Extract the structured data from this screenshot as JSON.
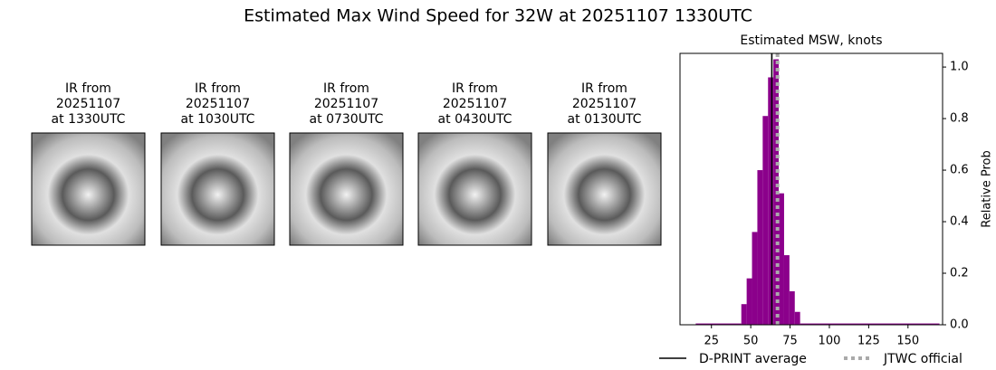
{
  "title": "Estimated Max Wind Speed for 32W at 20251107 1330UTC",
  "panels": [
    {
      "title": [
        "IR from",
        "20251107",
        "at 1330UTC"
      ]
    },
    {
      "title": [
        "IR from",
        "20251107",
        "at 1030UTC"
      ]
    },
    {
      "title": [
        "IR from",
        "20251107",
        "at 0730UTC"
      ]
    },
    {
      "title": [
        "IR from",
        "20251107",
        "at 0430UTC"
      ]
    },
    {
      "title": [
        "IR from",
        "20251107",
        "at 0130UTC"
      ]
    }
  ],
  "chart_data": {
    "type": "histogram",
    "title": "Estimated MSW, knots",
    "y_label": "Relative Prob",
    "color": "#8b008b",
    "bins": [
      15,
      44,
      47.4,
      50.8,
      54.2,
      57.6,
      61,
      64.4,
      67.8,
      71.2,
      74.6,
      78,
      81.4,
      170
    ],
    "values": [
      0.005,
      0.08,
      0.18,
      0.36,
      0.6,
      0.81,
      0.96,
      1.03,
      0.51,
      0.27,
      0.13,
      0.05,
      0.005
    ],
    "xlim": [
      5,
      172
    ],
    "xticks": [
      25,
      50,
      75,
      100,
      125,
      150
    ],
    "ylim": [
      0,
      1.053
    ],
    "yticks": [
      {
        "value": 0,
        "label": "0.0"
      },
      {
        "value": 0.2,
        "label": "0.2"
      },
      {
        "value": 0.4,
        "label": "0.4"
      },
      {
        "value": 0.6,
        "label": "0.6"
      },
      {
        "value": 0.8,
        "label": "0.8"
      },
      {
        "value": 1.0,
        "label": "1.0"
      }
    ],
    "lines": [
      {
        "name": "D-PRINT average",
        "value": 63.4,
        "color": "#000000",
        "style": "solid"
      },
      {
        "name": "JTWC official",
        "value": 67,
        "color": "#aaaaaa",
        "style": "dotted"
      }
    ]
  }
}
